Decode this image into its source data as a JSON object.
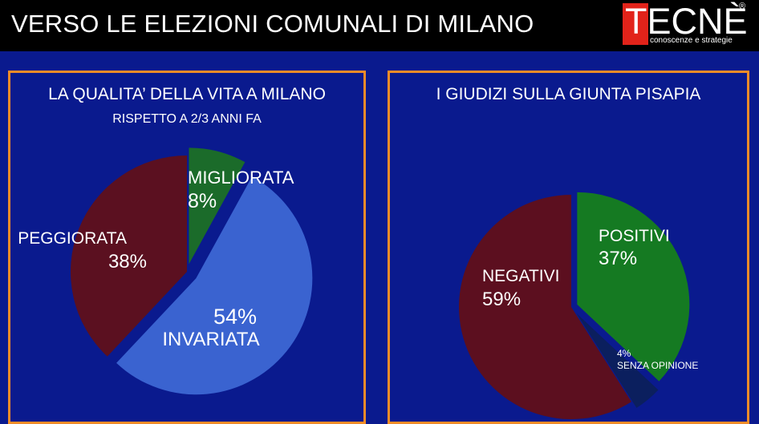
{
  "header": {
    "title": "VERSO LE ELEZIONI COMUNALI DI MILANO",
    "logo_text": "TECNÈ",
    "logo_registered": "®",
    "logo_tagline": "conoscenze e strategie"
  },
  "colors": {
    "background": "#0a1a8e",
    "panel_border": "#f28c28",
    "header_bar": "#000000",
    "logo_red": "#e2231a"
  },
  "chart_data": [
    {
      "type": "pie",
      "title": "LA QUALITA’ DELLA VITA A MILANO",
      "subtitle": "RISPETTO A 2/3 ANNI FA",
      "series": [
        {
          "name": "MIGLIORATA",
          "value": 8,
          "label": "8%",
          "color": "#1b6b2a"
        },
        {
          "name": "INVARIATA",
          "value": 54,
          "label": "54%",
          "color": "#3a63d0"
        },
        {
          "name": "PEGGIORATA",
          "value": 38,
          "label": "38%",
          "color": "#5b1020"
        }
      ]
    },
    {
      "type": "pie",
      "title": "I GIUDIZI SULLA GIUNTA PISAPIA",
      "series": [
        {
          "name": "POSITIVI",
          "value": 37,
          "label": "37%",
          "color": "#157a22"
        },
        {
          "name": "SENZA OPINIONE",
          "value": 4,
          "label": "4%",
          "color": "#0b1f5e"
        },
        {
          "name": "NEGATIVI",
          "value": 59,
          "label": "59%",
          "color": "#5c0f1f"
        }
      ]
    }
  ]
}
